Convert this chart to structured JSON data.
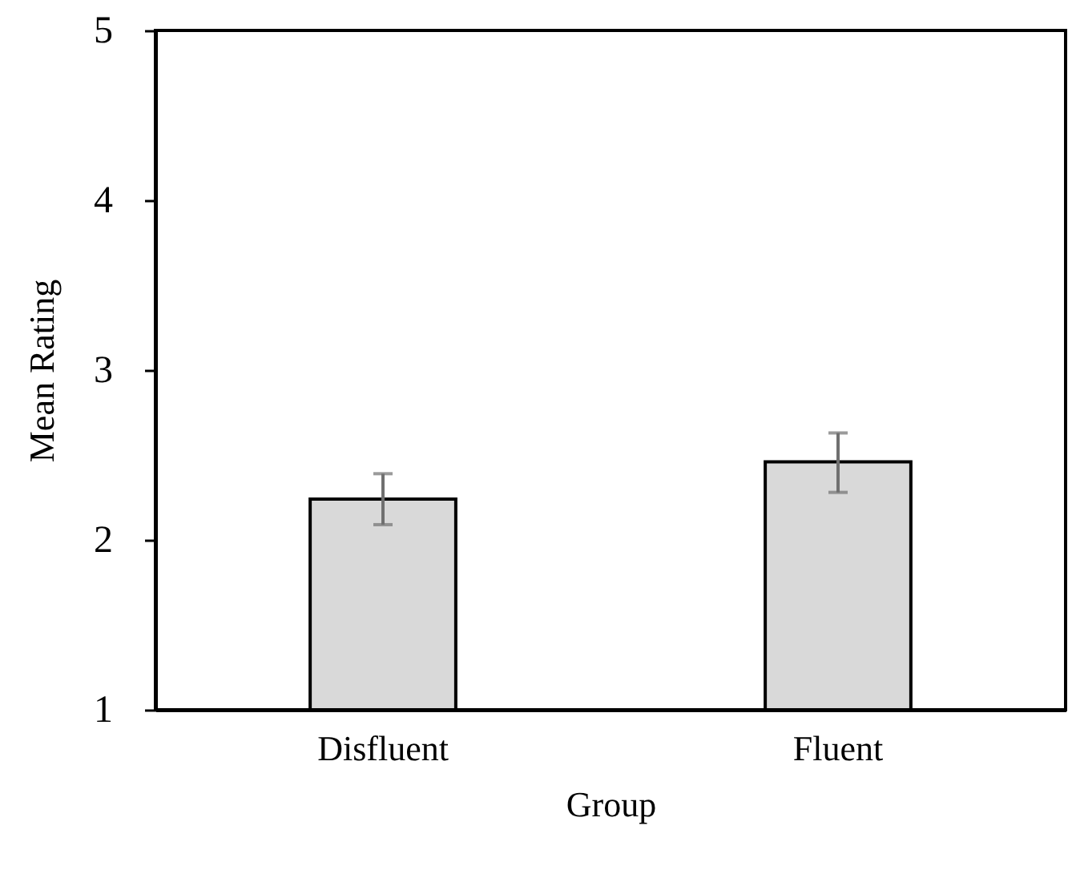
{
  "chart_data": {
    "type": "bar",
    "xlabel": "Group",
    "ylabel": "Mean Rating",
    "categories": [
      "Disfluent",
      "Fluent"
    ],
    "values": [
      2.24,
      2.46
    ],
    "errors": [
      [
        2.09,
        2.39
      ],
      [
        2.28,
        2.63
      ]
    ],
    "color": "#d9d9d9",
    "ylim": [
      1,
      5
    ],
    "yticks": [
      1,
      2,
      3,
      4,
      5
    ],
    "grid": false
  }
}
